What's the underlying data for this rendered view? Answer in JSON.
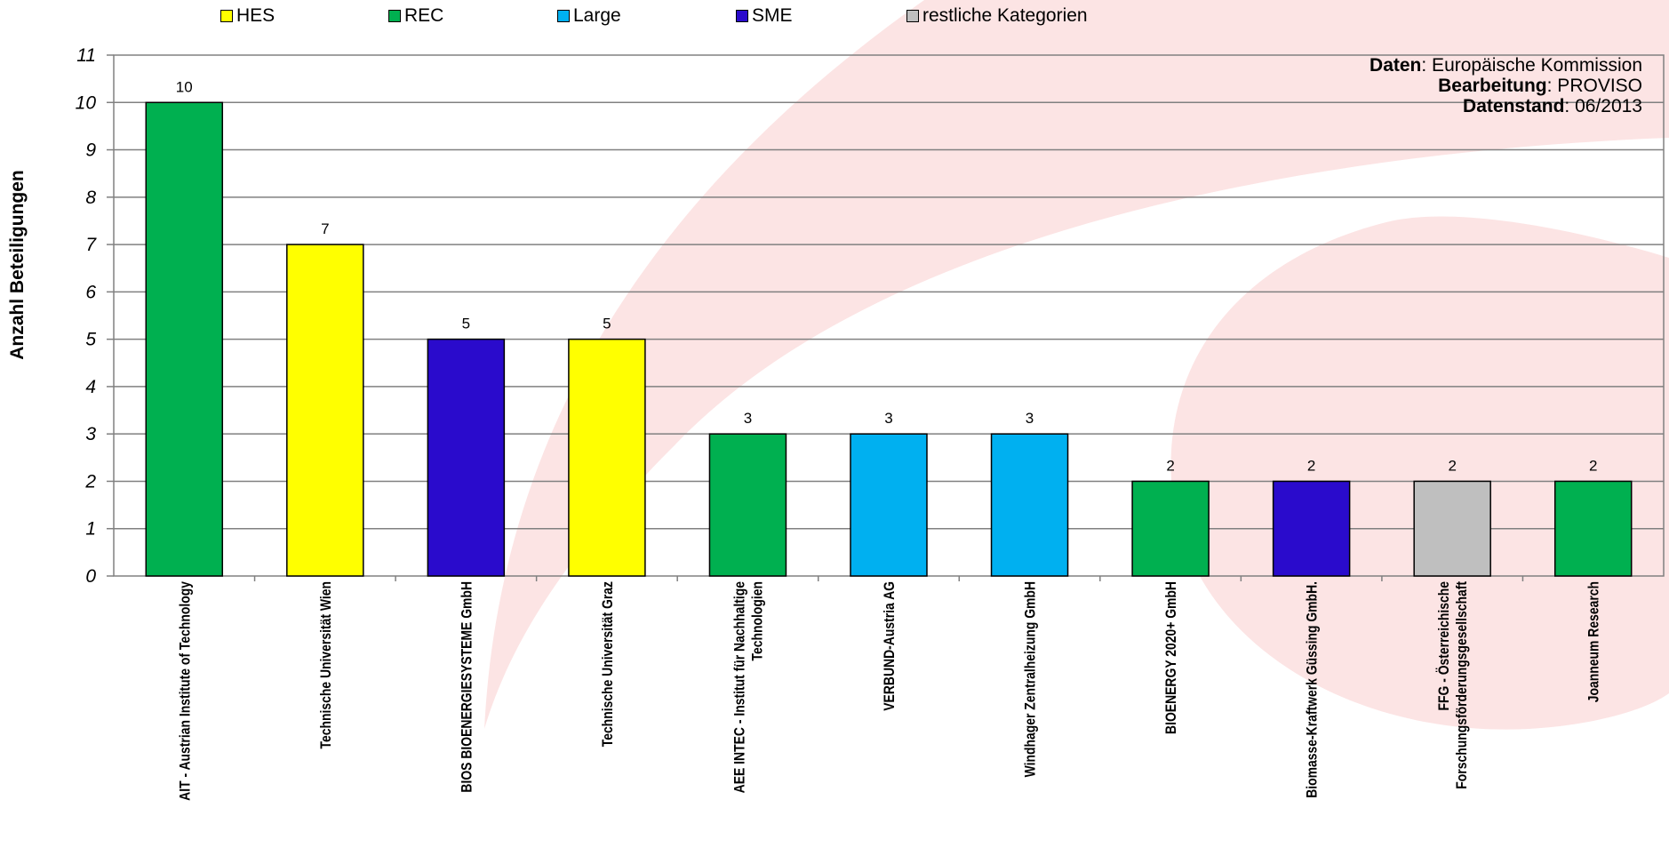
{
  "legend": {
    "items": [
      {
        "label": "HES",
        "color": "#FFFF00"
      },
      {
        "label": "REC",
        "color": "#00B050"
      },
      {
        "label": "Large",
        "color": "#00B0F0"
      },
      {
        "label": "SME",
        "color": "#2A0BCC"
      },
      {
        "label": "restliche Kategorien",
        "color": "#BFBFBF"
      }
    ]
  },
  "source": {
    "daten_label": "Daten",
    "daten_value": ": Europäische Kommission",
    "bearbeitung_label": "Bearbeitung",
    "bearbeitung_value": ": PROVISO",
    "datenstand_label": "Datenstand",
    "datenstand_value": ": 06/2013"
  },
  "chart_data": {
    "type": "bar",
    "ylabel": "Anzahl Beteiligungen",
    "xlabel": "",
    "ylim": [
      0,
      11
    ],
    "yticks": [
      0,
      1,
      2,
      3,
      4,
      5,
      6,
      7,
      8,
      9,
      10,
      11
    ],
    "grid": true,
    "legend_position": "top",
    "categories": [
      "AIT - Austrian Institute of Technology",
      "Technische Universität Wien",
      "BIOS BIOENERGIESYSTEME GmbH",
      "Technische Universität Graz",
      "AEE INTEC - Institut für Nachhaltige Technologien",
      "VERBUND-Austria AG",
      "Windhager Zentralheizung GmbH",
      "BIOENERGY 2020+ GmbH",
      "Biomasse-Kraftwerk Güssing GmbH.",
      "FFG - Österreichische Forschungsförderungsgesellschaft",
      "Joanneum Research"
    ],
    "category_label_lines": [
      [
        "AIT - Austrian Institute of Technology"
      ],
      [
        "Technische Universität Wien"
      ],
      [
        "BIOS BIOENERGIESYSTEME GmbH"
      ],
      [
        "Technische Universität Graz"
      ],
      [
        "AEE INTEC - Institut für Nachhaltige",
        "Technologien"
      ],
      [
        "VERBUND-Austria AG"
      ],
      [
        "Windhager Zentralheizung GmbH"
      ],
      [
        "BIOENERGY 2020+ GmbH"
      ],
      [
        "Biomasse-Kraftwerk Güssing GmbH."
      ],
      [
        "FFG - Österreichische",
        "Forschungsförderungsgesellschaft"
      ],
      [
        "Joanneum Research"
      ]
    ],
    "values": [
      10,
      7,
      5,
      5,
      3,
      3,
      3,
      2,
      2,
      2,
      2
    ],
    "categories_type": [
      "REC",
      "HES",
      "SME",
      "HES",
      "REC",
      "Large",
      "Large",
      "REC",
      "SME",
      "restliche Kategorien",
      "REC"
    ],
    "type_colors": {
      "HES": "#FFFF00",
      "REC": "#00B050",
      "Large": "#00B0F0",
      "SME": "#2A0BCC",
      "restliche Kategorien": "#BFBFBF"
    },
    "background_accent": "#FCE4E4"
  }
}
